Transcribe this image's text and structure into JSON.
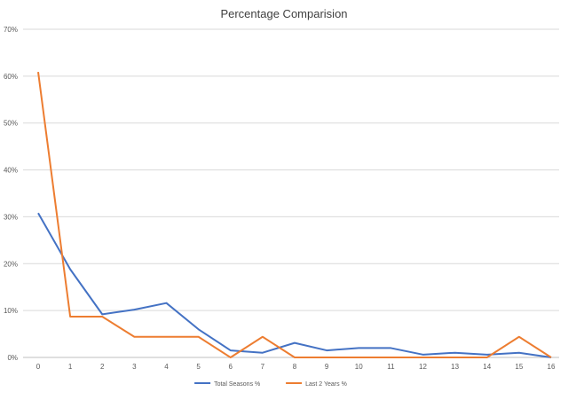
{
  "chart_data": {
    "type": "line",
    "title": "Percentage Comparision",
    "xlabel": "",
    "ylabel": "",
    "x": [
      0,
      1,
      2,
      3,
      4,
      5,
      6,
      7,
      8,
      9,
      10,
      11,
      12,
      13,
      14,
      15,
      16
    ],
    "ylim": [
      0,
      70
    ],
    "y_ticks": [
      "0%",
      "10%",
      "20%",
      "30%",
      "40%",
      "50%",
      "60%",
      "70%"
    ],
    "y_tick_values": [
      0,
      10,
      20,
      30,
      40,
      50,
      60,
      70
    ],
    "grid": true,
    "legend_position": "bottom",
    "series": [
      {
        "name": "Total Seasons %",
        "color": "#4472C4",
        "values": [
          30.8,
          18.8,
          9.2,
          10.2,
          11.6,
          6.0,
          1.5,
          1.0,
          3.1,
          1.5,
          2.0,
          2.0,
          0.6,
          1.0,
          0.6,
          1.0,
          0.0
        ]
      },
      {
        "name": "Last 2 Years %",
        "color": "#ED7D31",
        "values": [
          60.9,
          8.7,
          8.7,
          4.4,
          4.4,
          4.4,
          0.0,
          4.4,
          0.0,
          0.0,
          0.0,
          0.0,
          0.0,
          0.0,
          0.0,
          4.4,
          0.0
        ]
      }
    ]
  }
}
